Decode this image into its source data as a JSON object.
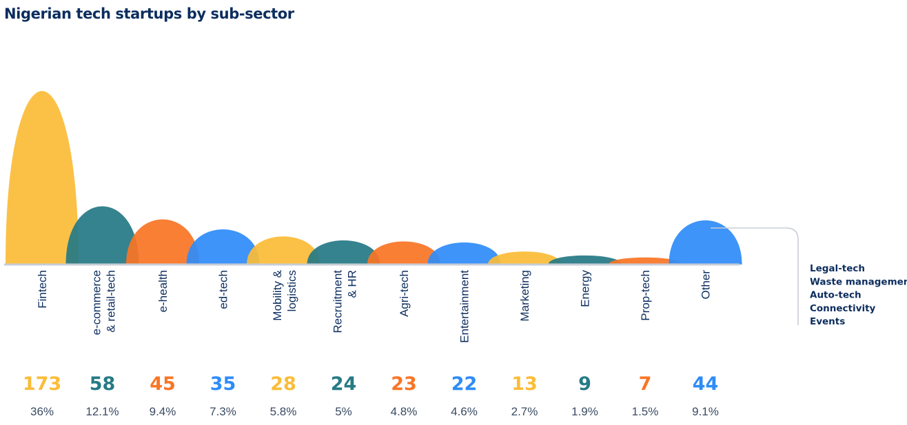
{
  "title": "Nigerian tech startups by sub-sector",
  "colors": {
    "yellow": "#fbbc38",
    "teal": "#267a85",
    "orange": "#f97526",
    "blue": "#2f8cf7",
    "navy": "#0c2d5e",
    "baseline": "#c8cdd6"
  },
  "chart_data": {
    "type": "bar",
    "title": "Nigerian tech startups by sub-sector",
    "categories": [
      [
        "Fintech"
      ],
      [
        "e-commerce",
        "& retail-tech"
      ],
      [
        "e-health"
      ],
      [
        "ed-tech"
      ],
      [
        "Mobility &",
        "logistics"
      ],
      [
        "Recruitment",
        "& HR"
      ],
      [
        "Agri-tech"
      ],
      [
        "Entertainment"
      ],
      [
        "Marketing"
      ],
      [
        "Energy"
      ],
      [
        "Prop-tech"
      ],
      [
        "Other"
      ]
    ],
    "values": [
      173,
      58,
      45,
      35,
      28,
      24,
      23,
      22,
      13,
      9,
      7,
      44
    ],
    "value_labels": [
      "173",
      "58",
      "45",
      "35",
      "28",
      "24",
      "23",
      "22",
      "13",
      "9",
      "7",
      "44"
    ],
    "percentages": [
      "36%",
      "12.1%",
      "9.4%",
      "7.3%",
      "5.8%",
      "5%",
      "4.8%",
      "4.6%",
      "2.7%",
      "1.9%",
      "1.5%",
      "9.1%"
    ],
    "bar_colors": [
      "yellow",
      "teal",
      "orange",
      "blue",
      "yellow",
      "teal",
      "orange",
      "blue",
      "yellow",
      "teal",
      "orange",
      "blue"
    ],
    "other_breakdown": [
      "Legal-tech",
      "Waste management",
      "Auto-tech",
      "Connectivity",
      "Events"
    ],
    "grid": false,
    "legend": "none"
  }
}
